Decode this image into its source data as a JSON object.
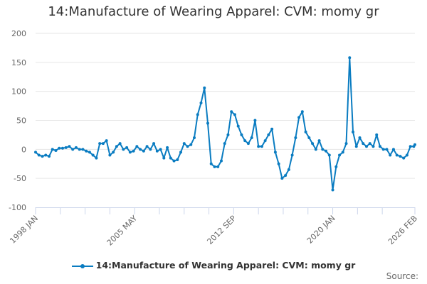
{
  "chart_data": {
    "type": "line",
    "title": "14:Manufacture of Wearing Apparel: CVM: momy gr",
    "xlabel": "",
    "ylabel": "",
    "ylim": [
      -100,
      200
    ],
    "yticks": [
      -100,
      -50,
      0,
      50,
      100,
      150,
      200
    ],
    "xrange": [
      "1998-01",
      "2026-02"
    ],
    "xtick_labels": [
      "1998 JAN",
      "2005 MAY",
      "2012 SEP",
      "2020 JAN",
      "2026 FEB"
    ],
    "grid": true,
    "legend_position": "bottom",
    "series_color": "#0a7cc1",
    "series": [
      {
        "name": "14:Manufacture of Wearing Apparel: CVM: momy gr",
        "x": [
          "1998-01",
          "1998-04",
          "1998-07",
          "1998-10",
          "1999-01",
          "1999-04",
          "1999-07",
          "1999-10",
          "2000-01",
          "2000-04",
          "2000-07",
          "2000-10",
          "2001-01",
          "2001-04",
          "2001-07",
          "2001-10",
          "2002-01",
          "2002-04",
          "2002-07",
          "2002-10",
          "2003-01",
          "2003-04",
          "2003-07",
          "2003-10",
          "2004-01",
          "2004-04",
          "2004-07",
          "2004-10",
          "2005-01",
          "2005-04",
          "2005-07",
          "2005-10",
          "2006-01",
          "2006-04",
          "2006-07",
          "2006-10",
          "2007-01",
          "2007-04",
          "2007-07",
          "2007-10",
          "2008-01",
          "2008-04",
          "2008-07",
          "2008-10",
          "2009-01",
          "2009-04",
          "2009-07",
          "2009-10",
          "2010-01",
          "2010-04",
          "2010-07",
          "2010-10",
          "2011-01",
          "2011-04",
          "2011-07",
          "2011-10",
          "2012-01",
          "2012-04",
          "2012-07",
          "2012-10",
          "2013-01",
          "2013-04",
          "2013-07",
          "2013-10",
          "2014-01",
          "2014-04",
          "2014-07",
          "2014-10",
          "2015-01",
          "2015-04",
          "2015-07",
          "2015-10",
          "2016-01",
          "2016-04",
          "2016-07",
          "2016-10",
          "2017-01",
          "2017-04",
          "2017-07",
          "2017-10",
          "2018-01",
          "2018-04",
          "2018-07",
          "2018-10",
          "2019-01",
          "2019-04",
          "2019-07",
          "2019-10",
          "2020-01",
          "2020-04",
          "2020-07",
          "2020-10",
          "2021-01",
          "2021-04",
          "2021-07",
          "2021-10",
          "2022-01",
          "2022-04",
          "2022-07",
          "2022-10",
          "2023-01",
          "2023-04",
          "2023-07",
          "2023-10",
          "2024-01",
          "2024-04",
          "2024-07",
          "2024-10",
          "2025-01",
          "2025-04",
          "2025-07",
          "2025-10",
          "2026-01",
          "2026-02"
        ],
        "values": [
          -5,
          -10,
          -12,
          -10,
          -12,
          0,
          -2,
          2,
          2,
          3,
          5,
          0,
          3,
          0,
          0,
          -3,
          -5,
          -10,
          -15,
          10,
          10,
          15,
          -10,
          -5,
          5,
          10,
          0,
          3,
          -5,
          -3,
          5,
          0,
          -3,
          5,
          0,
          10,
          -3,
          0,
          -15,
          3,
          -15,
          -20,
          -18,
          -5,
          10,
          5,
          8,
          20,
          60,
          80,
          106,
          45,
          -25,
          -30,
          -30,
          -20,
          10,
          25,
          65,
          60,
          40,
          25,
          15,
          10,
          20,
          50,
          5,
          5,
          15,
          25,
          35,
          -5,
          -25,
          -50,
          -45,
          -35,
          -10,
          20,
          55,
          65,
          30,
          20,
          10,
          0,
          15,
          0,
          -3,
          -10,
          -70,
          -30,
          -10,
          -5,
          10,
          158,
          30,
          5,
          20,
          10,
          5,
          10,
          5,
          25,
          5,
          0,
          0,
          -10,
          0,
          -10,
          -12,
          -15,
          -10,
          5,
          5,
          8
        ]
      }
    ]
  },
  "legend": {
    "label": "14:Manufacture of Wearing Apparel: CVM: momy gr"
  },
  "footer": {
    "source": "Source:"
  }
}
